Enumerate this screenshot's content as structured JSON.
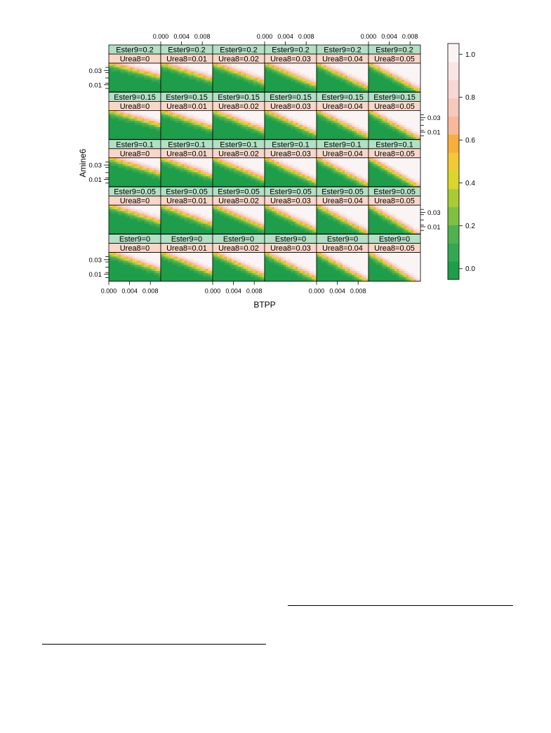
{
  "chart_data": {
    "type": "heatmap",
    "xlabel": "BTPP",
    "ylabel": "Amine6",
    "x_ticks": [
      "0.000",
      "0.004",
      "0.008"
    ],
    "y_ticks": [
      "0.03",
      "0.01"
    ],
    "xlim": [
      0,
      0.01
    ],
    "ylim": [
      0,
      0.04
    ],
    "row_strip_labels": [
      "Ester9=0.2",
      "Ester9=0.15",
      "Ester9=0.1",
      "Ester9=0.05",
      "Ester9=0"
    ],
    "col_strip_labels": [
      "Urea8=0",
      "Urea8=0.01",
      "Urea8=0.02",
      "Urea8=0.03",
      "Urea8=0.04",
      "Urea8=0.05"
    ],
    "ester9_values": [
      0.2,
      0.15,
      0.1,
      0.05,
      0
    ],
    "urea8_values": [
      0,
      0.01,
      0.02,
      0.03,
      0.04,
      0.05
    ],
    "colorbar": {
      "ticks": [
        "1.0",
        "0.8",
        "0.6",
        "0.4",
        "0.2",
        "0.0"
      ],
      "tick_values": [
        1.0,
        0.8,
        0.6,
        0.4,
        0.2,
        0.0
      ],
      "range": [
        -0.05,
        1.05
      ],
      "colors": [
        "#1e9e4a",
        "#33a853",
        "#4fb24f",
        "#7cc142",
        "#a9cc35",
        "#d8d72a",
        "#f3c934",
        "#f7ae3d",
        "#f8b99a",
        "#f7c9bb",
        "#f8d8d2",
        "#f9e6e4",
        "#faf4f5"
      ]
    },
    "strip_colors": {
      "ester": "#b3dfc4",
      "urea": "#f8d6c8"
    }
  },
  "footer_rules": [
    {
      "name": "right-footnote-rule"
    },
    {
      "name": "left-footnote-rule"
    }
  ]
}
